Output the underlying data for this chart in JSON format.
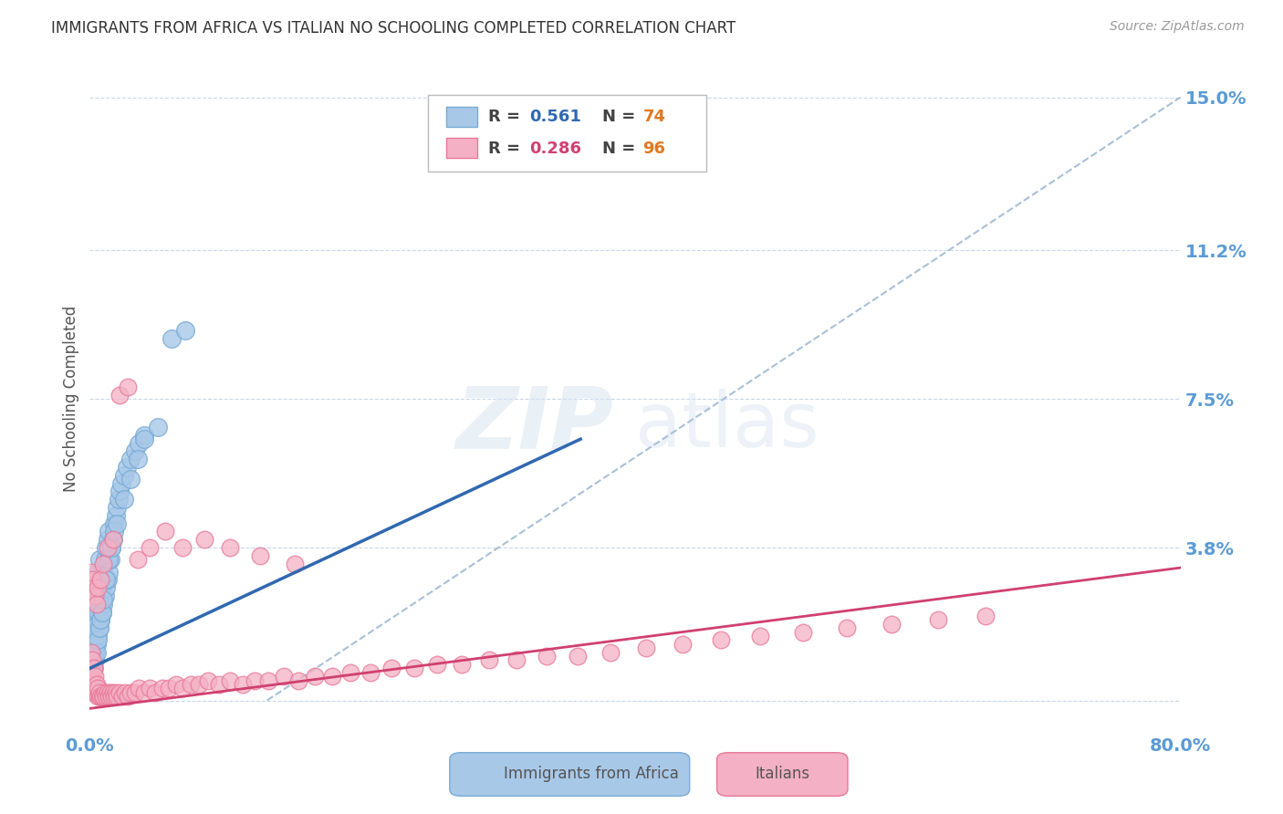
{
  "title": "IMMIGRANTS FROM AFRICA VS ITALIAN NO SCHOOLING COMPLETED CORRELATION CHART",
  "source": "Source: ZipAtlas.com",
  "ylabel": "No Schooling Completed",
  "watermark": "ZIPatlas",
  "xmin": 0.0,
  "xmax": 0.8,
  "ymin": -0.008,
  "ymax": 0.158,
  "yticks": [
    0.0,
    0.038,
    0.075,
    0.112,
    0.15
  ],
  "ytick_labels": [
    "",
    "3.8%",
    "7.5%",
    "11.2%",
    "15.0%"
  ],
  "xticks": [
    0.0,
    0.2,
    0.4,
    0.6,
    0.8
  ],
  "xtick_labels": [
    "0.0%",
    "",
    "",
    "",
    "80.0%"
  ],
  "blue_color": "#a8c8e8",
  "blue_edge": "#78aad4",
  "pink_color": "#f4b0c4",
  "pink_edge": "#e87898",
  "blue_line_color": "#3068b0",
  "pink_line_color": "#d04070",
  "dashed_line_color": "#a8c0d8",
  "tick_color": "#5b9bd5",
  "grid_color": "#c8d8e8",
  "background_color": "#ffffff",
  "title_color": "#333333",
  "axis_label_color": "#555555",
  "blue_line_x0": 0.0,
  "blue_line_y0": 0.008,
  "blue_line_x1": 0.36,
  "blue_line_y1": 0.065,
  "pink_line_x0": 0.0,
  "pink_line_y0": -0.002,
  "pink_line_x1": 0.8,
  "pink_line_y1": 0.033,
  "dash_line_x0": 0.13,
  "dash_line_y0": 0.0,
  "dash_line_x1": 0.8,
  "dash_line_y1": 0.15,
  "blue_x": [
    0.001,
    0.001,
    0.002,
    0.002,
    0.002,
    0.003,
    0.003,
    0.003,
    0.003,
    0.004,
    0.004,
    0.004,
    0.005,
    0.005,
    0.005,
    0.006,
    0.006,
    0.006,
    0.007,
    0.007,
    0.007,
    0.008,
    0.008,
    0.009,
    0.009,
    0.01,
    0.01,
    0.011,
    0.011,
    0.012,
    0.012,
    0.013,
    0.013,
    0.014,
    0.014,
    0.015,
    0.016,
    0.017,
    0.018,
    0.019,
    0.02,
    0.021,
    0.022,
    0.023,
    0.025,
    0.027,
    0.03,
    0.033,
    0.036,
    0.04,
    0.001,
    0.002,
    0.002,
    0.003,
    0.003,
    0.004,
    0.005,
    0.006,
    0.007,
    0.008,
    0.009,
    0.01,
    0.012,
    0.014,
    0.016,
    0.018,
    0.02,
    0.025,
    0.03,
    0.035,
    0.04,
    0.05,
    0.06,
    0.07
  ],
  "blue_y": [
    0.01,
    0.015,
    0.008,
    0.012,
    0.02,
    0.01,
    0.015,
    0.022,
    0.03,
    0.012,
    0.018,
    0.025,
    0.014,
    0.02,
    0.028,
    0.016,
    0.022,
    0.032,
    0.018,
    0.025,
    0.035,
    0.02,
    0.028,
    0.022,
    0.03,
    0.024,
    0.033,
    0.026,
    0.035,
    0.028,
    0.038,
    0.03,
    0.04,
    0.032,
    0.042,
    0.035,
    0.038,
    0.04,
    0.044,
    0.046,
    0.048,
    0.05,
    0.052,
    0.054,
    0.056,
    0.058,
    0.06,
    0.062,
    0.064,
    0.066,
    0.005,
    0.007,
    0.018,
    0.008,
    0.025,
    0.01,
    0.012,
    0.015,
    0.018,
    0.02,
    0.022,
    0.025,
    0.03,
    0.035,
    0.038,
    0.042,
    0.044,
    0.05,
    0.055,
    0.06,
    0.065,
    0.068,
    0.09,
    0.092
  ],
  "pink_x": [
    0.001,
    0.001,
    0.001,
    0.002,
    0.002,
    0.002,
    0.003,
    0.003,
    0.003,
    0.004,
    0.004,
    0.005,
    0.005,
    0.006,
    0.006,
    0.007,
    0.007,
    0.008,
    0.009,
    0.01,
    0.011,
    0.012,
    0.013,
    0.014,
    0.015,
    0.016,
    0.017,
    0.018,
    0.019,
    0.02,
    0.022,
    0.024,
    0.026,
    0.028,
    0.03,
    0.033,
    0.036,
    0.04,
    0.044,
    0.048,
    0.053,
    0.058,
    0.063,
    0.068,
    0.074,
    0.08,
    0.087,
    0.095,
    0.103,
    0.112,
    0.121,
    0.131,
    0.142,
    0.153,
    0.165,
    0.178,
    0.191,
    0.206,
    0.221,
    0.238,
    0.255,
    0.273,
    0.293,
    0.313,
    0.335,
    0.358,
    0.382,
    0.408,
    0.435,
    0.463,
    0.492,
    0.523,
    0.555,
    0.588,
    0.622,
    0.657,
    0.001,
    0.002,
    0.003,
    0.004,
    0.005,
    0.006,
    0.008,
    0.01,
    0.013,
    0.017,
    0.022,
    0.028,
    0.035,
    0.044,
    0.055,
    0.068,
    0.084,
    0.103,
    0.125,
    0.15
  ],
  "pink_y": [
    0.005,
    0.008,
    0.012,
    0.003,
    0.007,
    0.01,
    0.002,
    0.005,
    0.008,
    0.003,
    0.006,
    0.002,
    0.004,
    0.001,
    0.003,
    0.001,
    0.002,
    0.001,
    0.001,
    0.001,
    0.002,
    0.001,
    0.002,
    0.001,
    0.002,
    0.001,
    0.002,
    0.001,
    0.002,
    0.001,
    0.002,
    0.001,
    0.002,
    0.001,
    0.002,
    0.002,
    0.003,
    0.002,
    0.003,
    0.002,
    0.003,
    0.003,
    0.004,
    0.003,
    0.004,
    0.004,
    0.005,
    0.004,
    0.005,
    0.004,
    0.005,
    0.005,
    0.006,
    0.005,
    0.006,
    0.006,
    0.007,
    0.007,
    0.008,
    0.008,
    0.009,
    0.009,
    0.01,
    0.01,
    0.011,
    0.011,
    0.012,
    0.013,
    0.014,
    0.015,
    0.016,
    0.017,
    0.018,
    0.019,
    0.02,
    0.021,
    0.032,
    0.03,
    0.028,
    0.026,
    0.024,
    0.028,
    0.03,
    0.034,
    0.038,
    0.04,
    0.076,
    0.078,
    0.035,
    0.038,
    0.042,
    0.038,
    0.04,
    0.038,
    0.036,
    0.034
  ]
}
